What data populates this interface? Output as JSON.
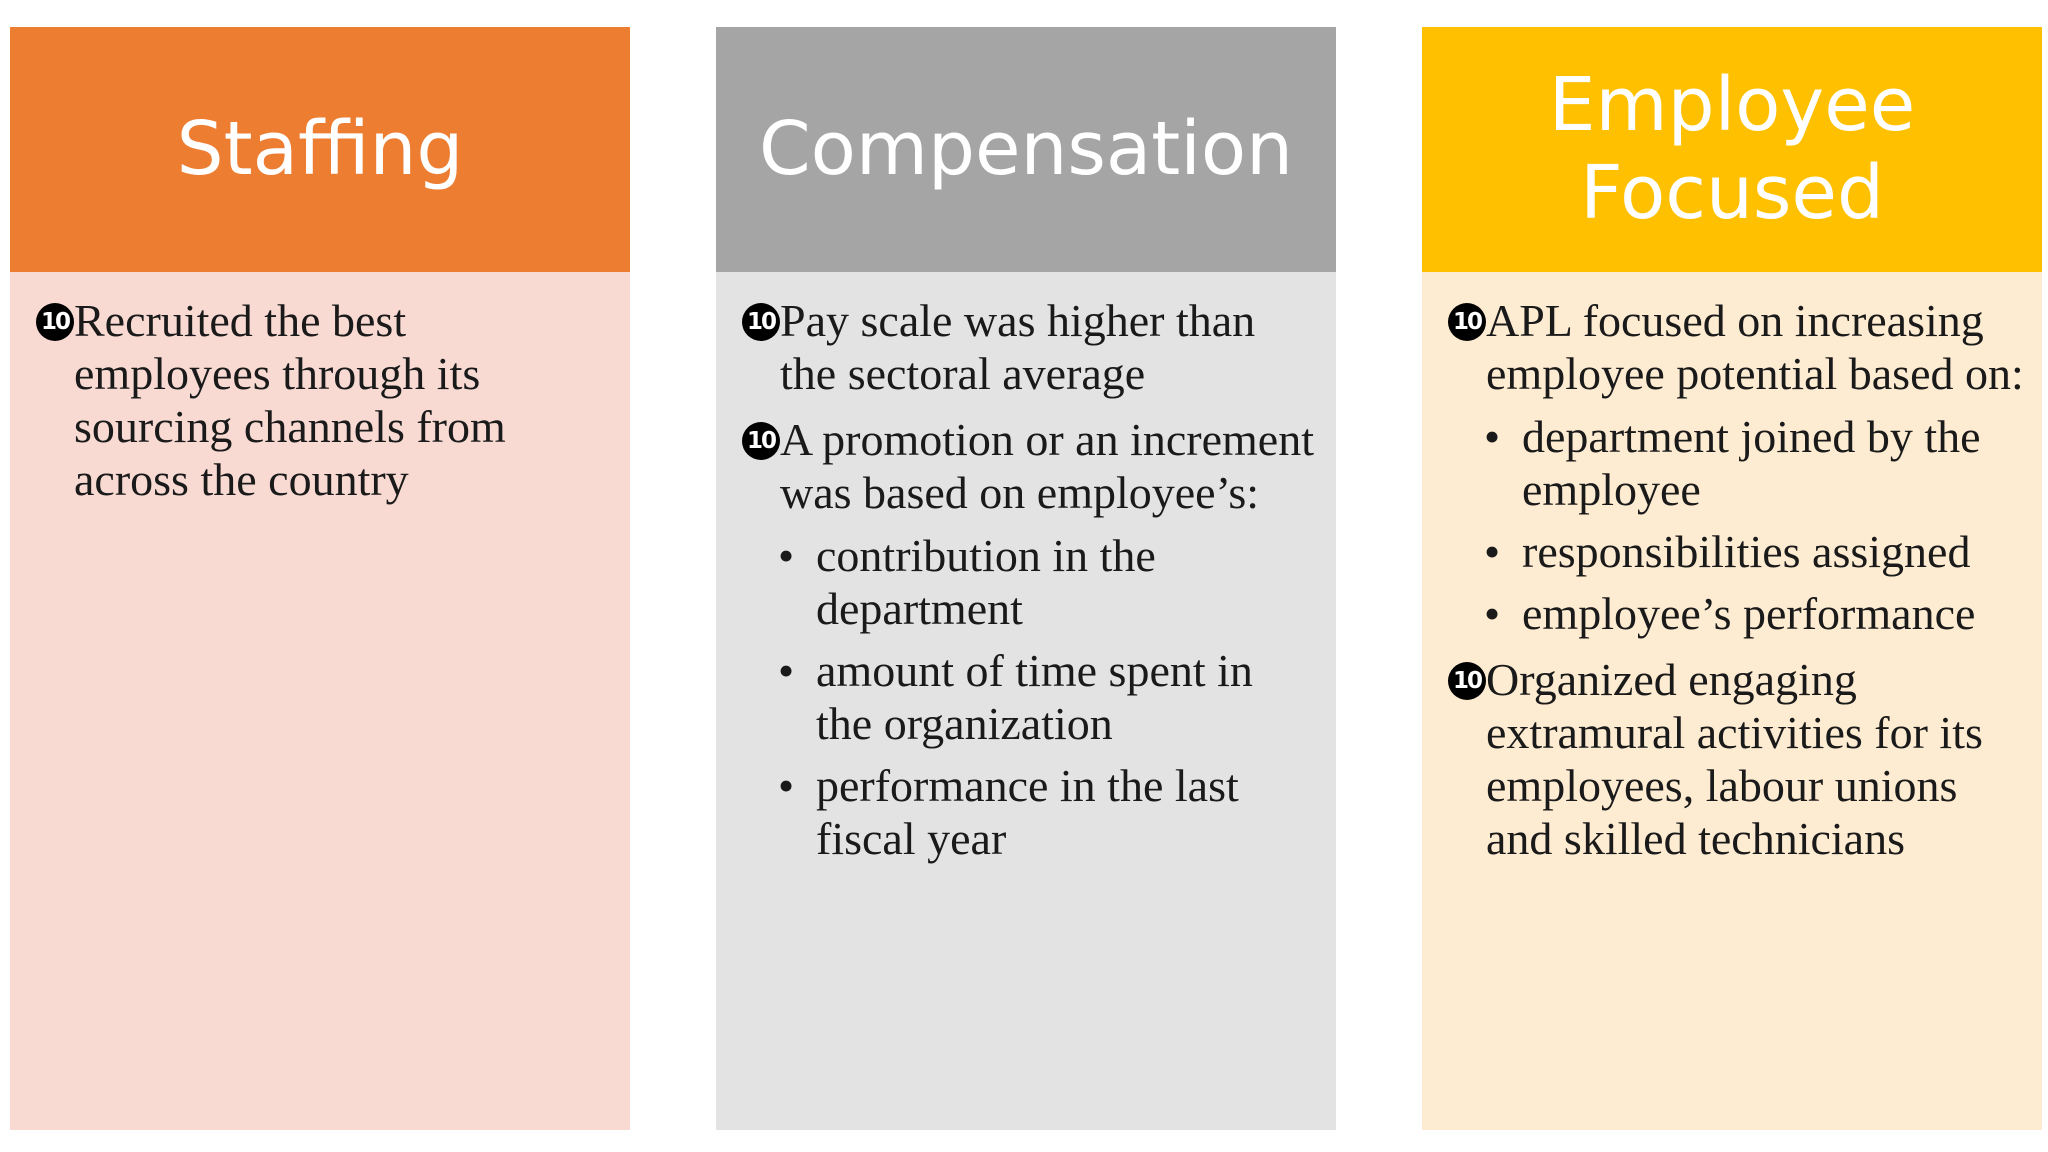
{
  "colors": {
    "staffing_header": "#ED7D31",
    "staffing_body": "#F8DAD3",
    "compensation_header": "#A5A5A5",
    "compensation_body": "#E3E3E3",
    "employee_header": "#FFC000",
    "employee_body": "#FDEBD2"
  },
  "columns": [
    {
      "header": "Staffing",
      "items": [
        {
          "marker": "10",
          "text": "Recruited the best employees through its sourcing channels from across the country",
          "sub_items": []
        }
      ]
    },
    {
      "header": "Compensation",
      "items": [
        {
          "marker": "10",
          "text": "Pay scale was higher than the sectoral average",
          "sub_items": []
        },
        {
          "marker": "10",
          "text": "A promotion or an increment was based on employee’s:",
          "sub_items": [
            "contribution in the department",
            "amount of time spent in the organization",
            "performance in the last fiscal year"
          ]
        }
      ]
    },
    {
      "header": "Employee Focused",
      "items": [
        {
          "marker": "10",
          "text": "APL focused on increasing employee potential based on:",
          "sub_items": [
            "department joined by the employee",
            "responsibilities assigned",
            "employee’s performance"
          ]
        },
        {
          "marker": "10",
          "text": "Organized engaging extramural activities for its employees, labour unions and skilled technicians",
          "sub_items": []
        }
      ]
    }
  ],
  "bullet_glyph": "•"
}
